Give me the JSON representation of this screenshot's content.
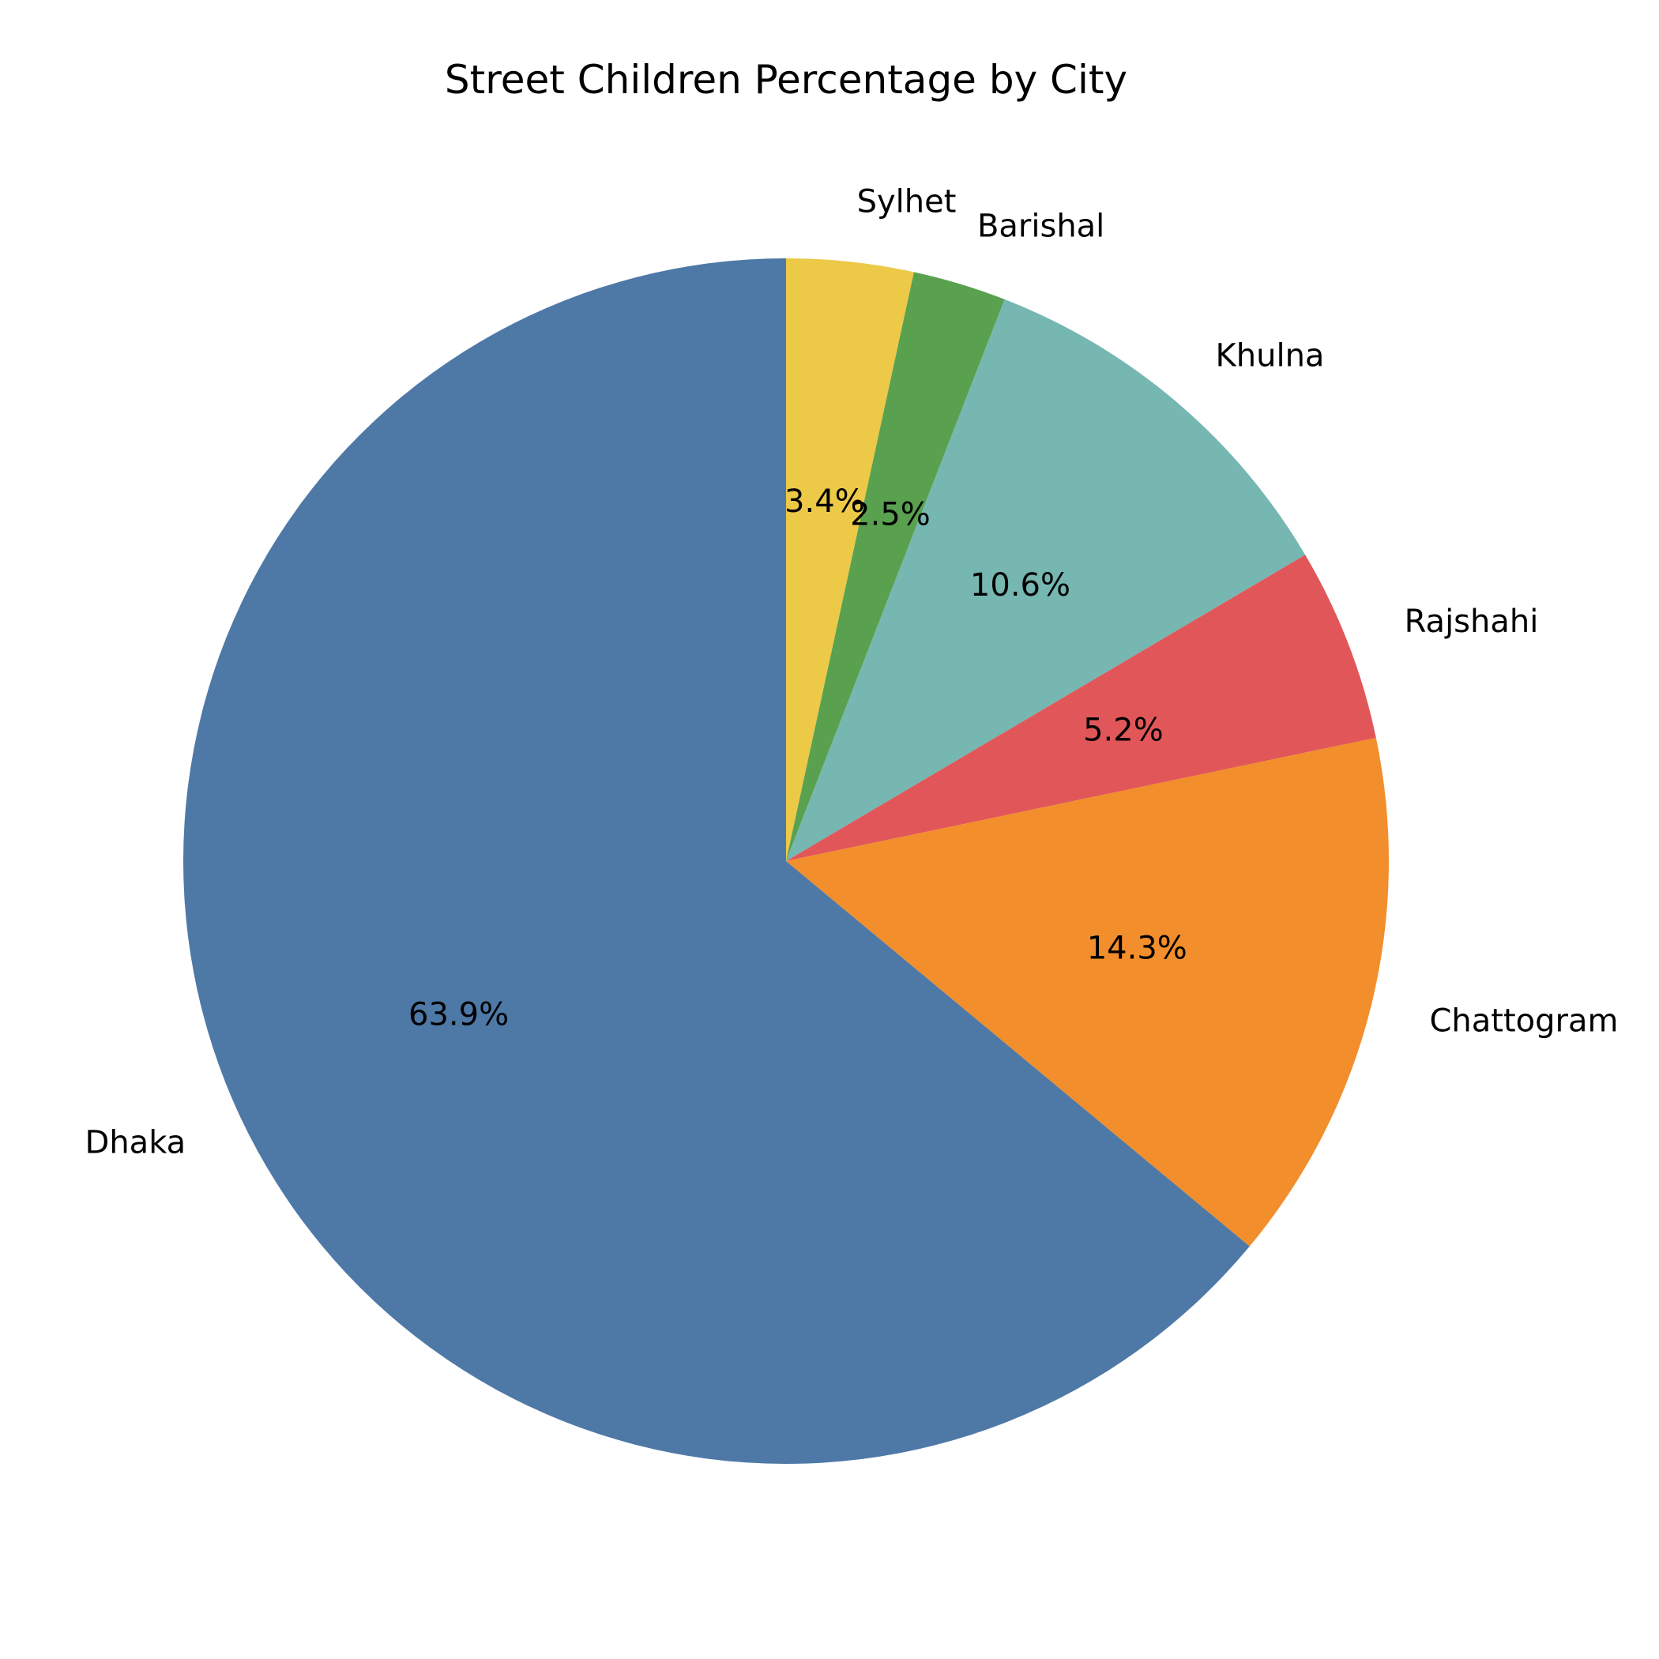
{
  "chart_data": {
    "type": "pie",
    "title": "Street Children Percentage by City",
    "slices": [
      {
        "label": "Sylhet",
        "value": 3.4,
        "pct_text": "3.4%",
        "color": "#EDC948"
      },
      {
        "label": "Barishal",
        "value": 2.5,
        "pct_text": "2.5%",
        "color": "#59A14F"
      },
      {
        "label": "Khulna",
        "value": 10.6,
        "pct_text": "10.6%",
        "color": "#76B7B2"
      },
      {
        "label": "Rajshahi",
        "value": 5.2,
        "pct_text": "5.2%",
        "color": "#E15759"
      },
      {
        "label": "Chattogram",
        "value": 14.3,
        "pct_text": "14.3%",
        "color": "#F28E2B"
      },
      {
        "label": "Dhaka",
        "value": 63.9,
        "pct_text": "63.9%",
        "color": "#4E79A7"
      }
    ],
    "start_angle_deg": 90,
    "direction": "clockwise"
  }
}
